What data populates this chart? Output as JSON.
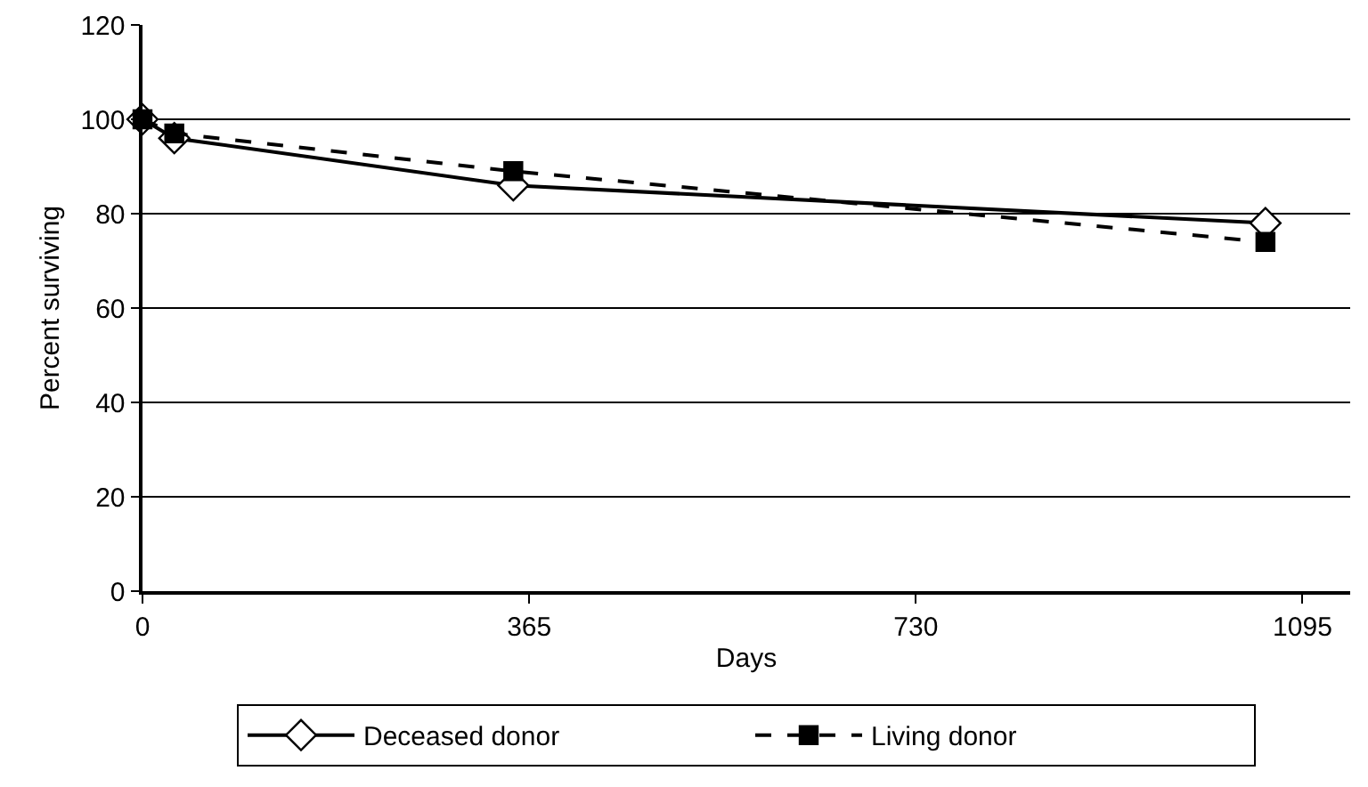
{
  "chart_data": {
    "type": "line",
    "xlabel": "Days",
    "ylabel": "Percent surviving",
    "series": [
      {
        "name": "Deceased donor",
        "color": "#000000",
        "x": [
          0,
          30,
          350,
          1060
        ],
        "values": [
          100,
          96,
          86,
          78
        ],
        "marker": "diamond",
        "line_style": "solid"
      },
      {
        "name": "Living donor",
        "color": "#000000",
        "x": [
          0,
          30,
          350,
          1060
        ],
        "values": [
          100,
          97,
          89,
          74
        ],
        "marker": "square",
        "line_style": "dashed"
      }
    ],
    "xlim": [
      0,
      1140
    ],
    "xticks": [
      0,
      365,
      730,
      1095
    ],
    "ylim": [
      0,
      120
    ],
    "yticks": [
      0,
      20,
      40,
      60,
      80,
      100,
      120
    ],
    "grid": "y",
    "legend": "bottom"
  }
}
